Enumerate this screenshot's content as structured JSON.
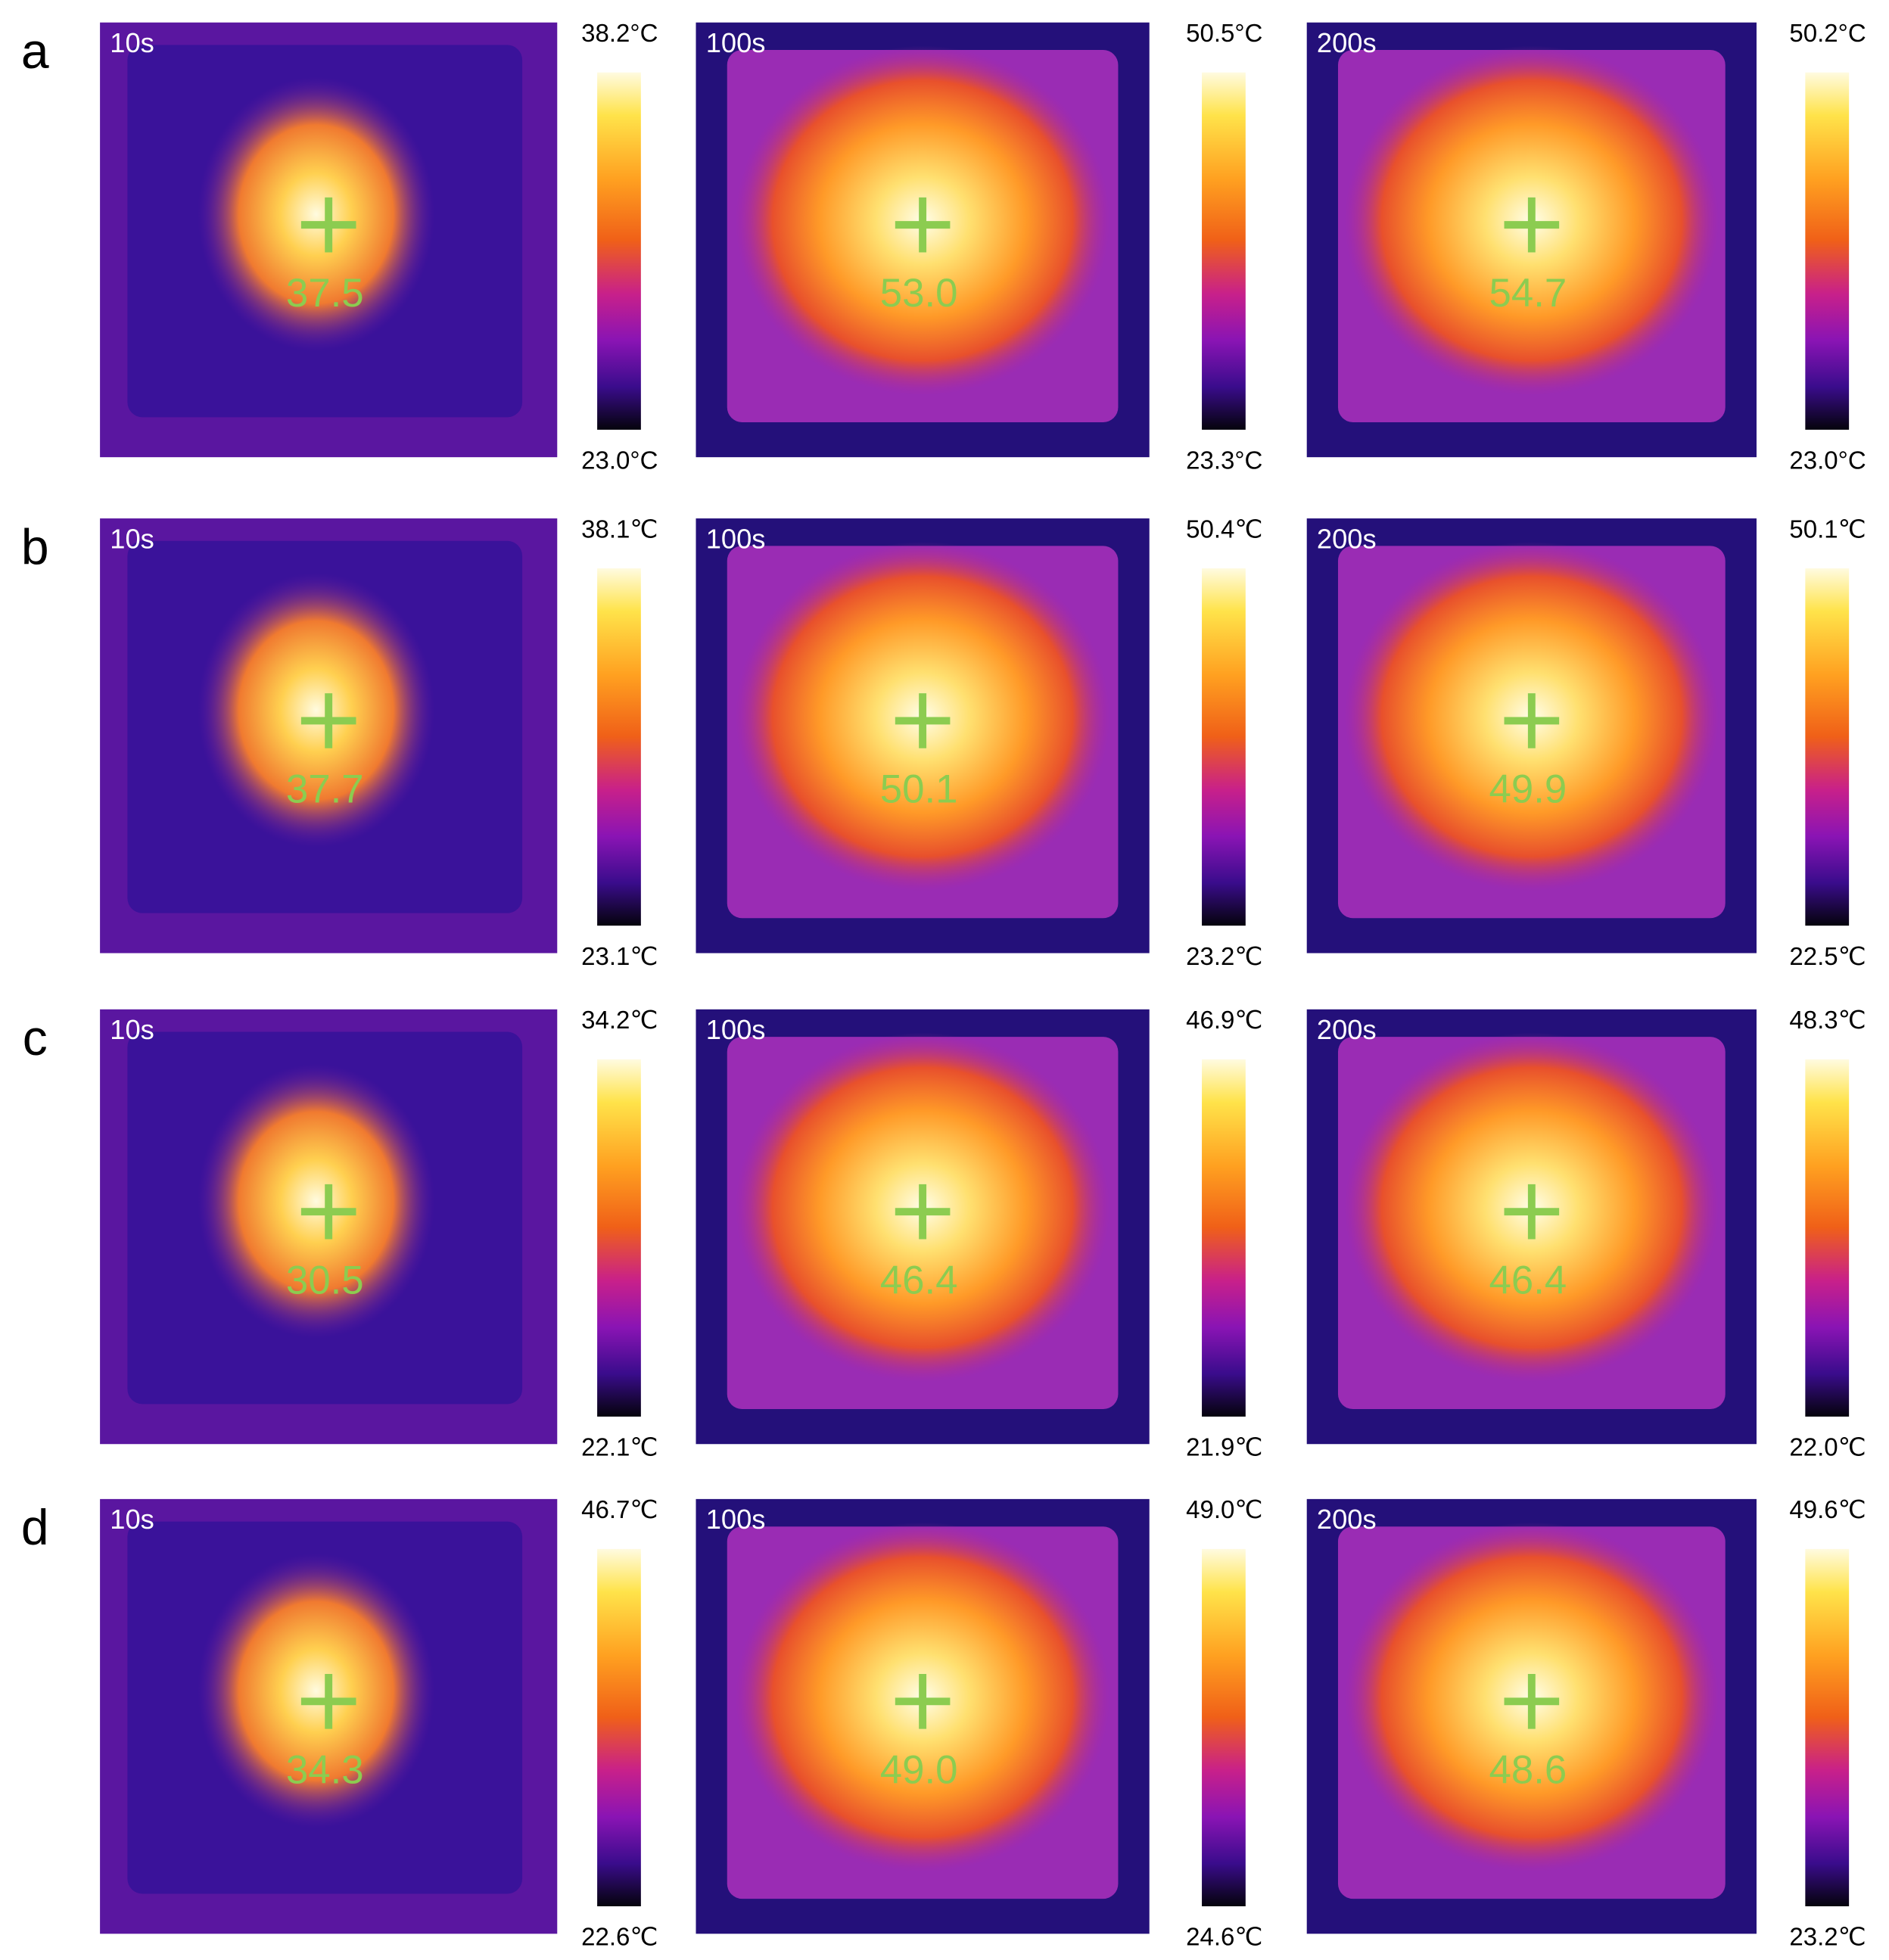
{
  "rows": [
    {
      "label": "a",
      "panels": [
        {
          "time": "10s",
          "spot": "37.5",
          "max": "38.2°C",
          "min": "23.0°C"
        },
        {
          "time": "100s",
          "spot": "53.0",
          "max": "50.5°C",
          "min": "23.3°C"
        },
        {
          "time": "200s",
          "spot": "54.7",
          "max": "50.2°C",
          "min": "23.0°C"
        }
      ]
    },
    {
      "label": "b",
      "panels": [
        {
          "time": "10s",
          "spot": "37.7",
          "max": "38.1℃",
          "min": "23.1℃"
        },
        {
          "time": "100s",
          "spot": "50.1",
          "max": "50.4℃",
          "min": "23.2℃"
        },
        {
          "time": "200s",
          "spot": "49.9",
          "max": "50.1℃",
          "min": "22.5℃"
        }
      ]
    },
    {
      "label": "c",
      "panels": [
        {
          "time": "10s",
          "spot": "30.5",
          "max": "34.2℃",
          "min": "22.1℃"
        },
        {
          "time": "100s",
          "spot": "46.4",
          "max": "46.9℃",
          "min": "21.9℃"
        },
        {
          "time": "200s",
          "spot": "46.4",
          "max": "48.3℃",
          "min": "22.0℃"
        }
      ]
    },
    {
      "label": "d",
      "panels": [
        {
          "time": "10s",
          "spot": "34.3",
          "max": "46.7℃",
          "min": "22.6℃"
        },
        {
          "time": "100s",
          "spot": "49.0",
          "max": "49.0℃",
          "min": "24.6℃"
        },
        {
          "time": "200s",
          "spot": "48.6",
          "max": "49.6℃",
          "min": "23.2℃"
        }
      ]
    }
  ]
}
